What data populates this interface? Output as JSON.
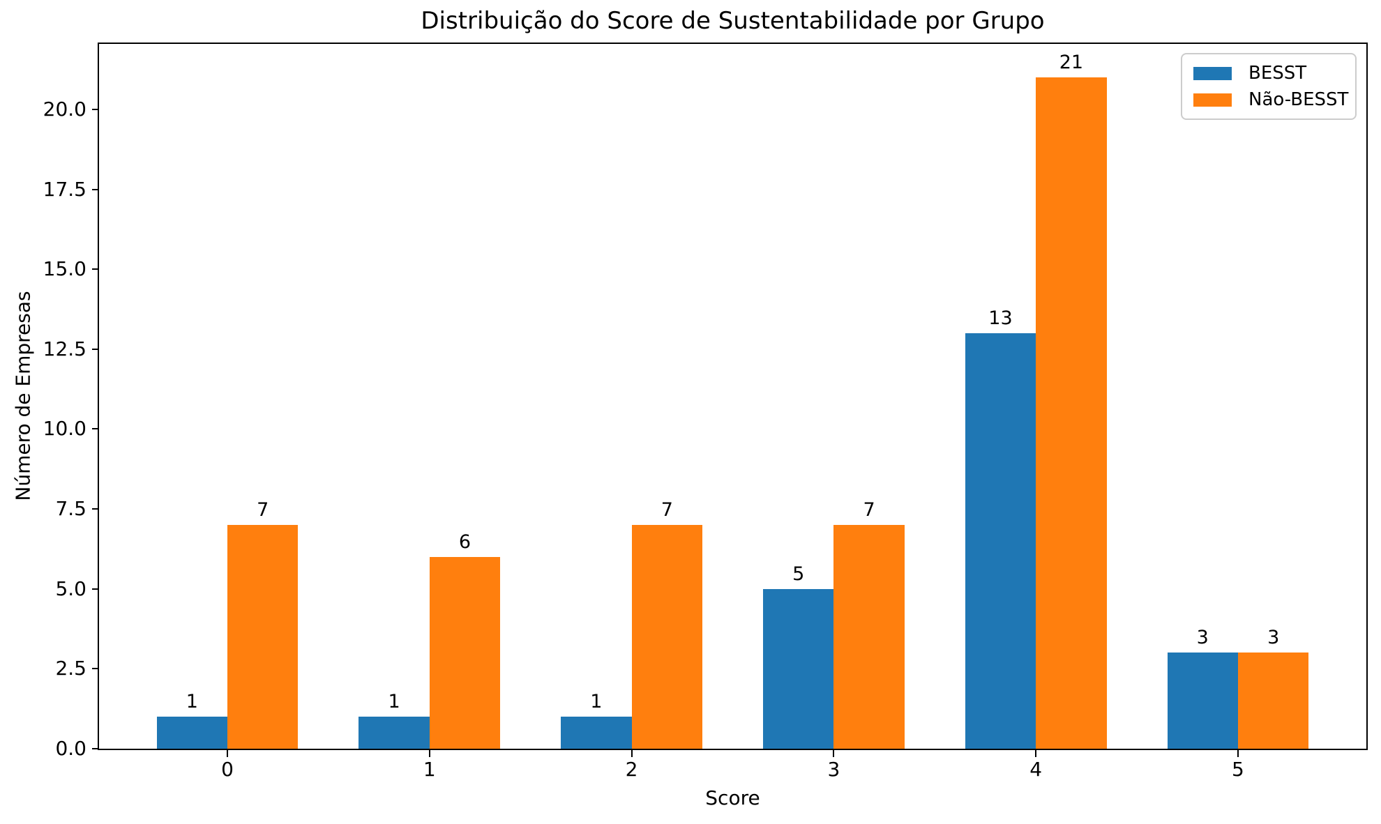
{
  "chart_data": {
    "type": "bar",
    "title": "Distribuição do Score de Sustentabilidade por Grupo",
    "xlabel": "Score",
    "ylabel": "Número de Empresas",
    "categories": [
      "0",
      "1",
      "2",
      "3",
      "4",
      "5"
    ],
    "series": [
      {
        "name": "BESST",
        "color": "#1f77b4",
        "values": [
          1,
          1,
          1,
          5,
          13,
          3
        ]
      },
      {
        "name": "Não-BESST",
        "color": "#ff7f0e",
        "values": [
          7,
          6,
          7,
          7,
          21,
          3
        ]
      }
    ],
    "bar_width": 0.35,
    "bar_value_labels": [
      [
        "1",
        "1",
        "1",
        "5",
        "13",
        "3"
      ],
      [
        "7",
        "6",
        "7",
        "7",
        "21",
        "3"
      ]
    ],
    "ylim": [
      0,
      22.05
    ],
    "yticks": [
      {
        "value": 0,
        "label": "0.0"
      },
      {
        "value": 2.5,
        "label": "2.5"
      },
      {
        "value": 5,
        "label": "5.0"
      },
      {
        "value": 7.5,
        "label": "7.5"
      },
      {
        "value": 10,
        "label": "10.0"
      },
      {
        "value": 12.5,
        "label": "12.5"
      },
      {
        "value": 15,
        "label": "15.0"
      },
      {
        "value": 17.5,
        "label": "17.5"
      },
      {
        "value": 20,
        "label": "20.0"
      }
    ],
    "legend": {
      "position": "upper right",
      "items": [
        {
          "label": "BESST",
          "color": "#1f77b4"
        },
        {
          "label": "Não-BESST",
          "color": "#ff7f0e"
        }
      ]
    },
    "grid": false,
    "background": "#ffffff",
    "text_color": "#000000"
  }
}
